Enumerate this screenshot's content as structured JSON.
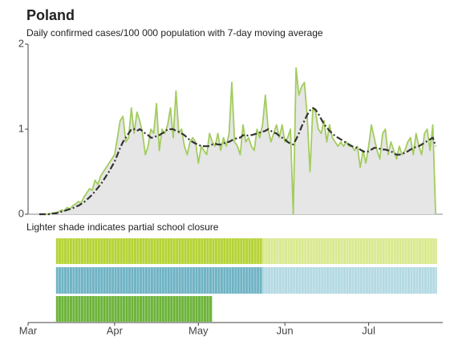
{
  "chart_data": {
    "type": "line",
    "title": "Poland",
    "subtitle": "Daily confirmed cases/100 000 population with 7-day moving average",
    "note": "Lighter shade indicates partial school closure",
    "xlim": [
      0,
      150
    ],
    "xticks": [
      {
        "value": 0,
        "label": "Mar"
      },
      {
        "value": 31,
        "label": "Apr"
      },
      {
        "value": 61,
        "label": "May"
      },
      {
        "value": 92,
        "label": "Jun"
      },
      {
        "value": 122,
        "label": "Jul"
      }
    ],
    "ylim": [
      0,
      2
    ],
    "yticks": [
      0,
      1,
      2
    ],
    "x": [
      4,
      5,
      6,
      7,
      8,
      9,
      10,
      11,
      12,
      13,
      14,
      15,
      16,
      17,
      18,
      19,
      20,
      21,
      22,
      23,
      24,
      25,
      26,
      27,
      28,
      29,
      30,
      31,
      32,
      33,
      34,
      35,
      36,
      37,
      38,
      39,
      40,
      41,
      42,
      43,
      44,
      45,
      46,
      47,
      48,
      49,
      50,
      51,
      52,
      53,
      54,
      55,
      56,
      57,
      58,
      59,
      60,
      61,
      62,
      63,
      64,
      65,
      66,
      67,
      68,
      69,
      70,
      71,
      72,
      73,
      74,
      75,
      76,
      77,
      78,
      79,
      80,
      81,
      82,
      83,
      84,
      85,
      86,
      87,
      88,
      89,
      90,
      91,
      92,
      93,
      94,
      95,
      96,
      97,
      98,
      99,
      100,
      101,
      102,
      103,
      104,
      105,
      106,
      107,
      108,
      109,
      110,
      111,
      112,
      113,
      114,
      115,
      116,
      117,
      118,
      119,
      120,
      121,
      122,
      123,
      124,
      125,
      126,
      127,
      128,
      129,
      130,
      131,
      132,
      133,
      134,
      135,
      136,
      137,
      138,
      139,
      140,
      141,
      142,
      143,
      144,
      145,
      146
    ],
    "series": [
      {
        "color": "#a3cc5f",
        "fill": "#e6e6e6",
        "values": [
          0,
          0,
          0,
          0,
          0.01,
          0.01,
          0.02,
          0.03,
          0.05,
          0.04,
          0.08,
          0.06,
          0.1,
          0.12,
          0.15,
          0.13,
          0.2,
          0.25,
          0.3,
          0.28,
          0.4,
          0.35,
          0.45,
          0.5,
          0.55,
          0.6,
          0.65,
          0.7,
          0.9,
          1.1,
          1.15,
          0.85,
          0.9,
          1.25,
          0.95,
          1.2,
          1.1,
          0.95,
          0.7,
          0.8,
          1.0,
          0.95,
          1.3,
          0.75,
          1.0,
          0.95,
          1.05,
          1.25,
          0.9,
          1.45,
          0.95,
          1.0,
          0.8,
          0.7,
          0.85,
          0.9,
          0.85,
          0.6,
          0.8,
          0.75,
          0.7,
          0.95,
          0.85,
          0.8,
          0.95,
          0.75,
          0.9,
          0.8,
          0.95,
          1.55,
          0.85,
          0.8,
          0.7,
          1.05,
          0.85,
          0.9,
          0.8,
          0.75,
          1.0,
          0.9,
          1.05,
          1.4,
          1.0,
          0.85,
          0.95,
          1.05,
          0.9,
          1.05,
          0.85,
          0.9,
          1.0,
          0.0,
          1.72,
          1.4,
          1.5,
          1.55,
          1.15,
          0.5,
          1.25,
          1.2,
          1.0,
          0.95,
          1.1,
          0.85,
          1.05,
          0.9,
          0.85,
          0.8,
          0.85,
          0.8,
          0.85,
          0.8,
          0.8,
          0.75,
          0.8,
          0.55,
          0.75,
          0.6,
          0.8,
          1.05,
          0.9,
          0.75,
          0.65,
          0.95,
          1.0,
          0.7,
          0.85,
          0.75,
          0.65,
          0.8,
          0.7,
          0.75,
          0.85,
          0.9,
          0.7,
          0.95,
          0.8,
          0.7,
          0.95,
          1.0,
          0.75,
          1.05,
          0.0
        ]
      },
      {
        "color": "#333333",
        "dash": true,
        "values": [
          0,
          0,
          0,
          0,
          0,
          0.01,
          0.01,
          0.02,
          0.03,
          0.04,
          0.05,
          0.06,
          0.07,
          0.09,
          0.1,
          0.12,
          0.14,
          0.17,
          0.2,
          0.23,
          0.27,
          0.31,
          0.35,
          0.4,
          0.45,
          0.5,
          0.56,
          0.62,
          0.7,
          0.78,
          0.85,
          0.9,
          0.95,
          1.0,
          1.0,
          0.98,
          1.0,
          0.98,
          0.95,
          0.93,
          0.9,
          0.9,
          0.92,
          0.93,
          0.95,
          0.97,
          1.0,
          1.0,
          1.0,
          0.98,
          0.97,
          0.95,
          0.93,
          0.9,
          0.87,
          0.85,
          0.83,
          0.82,
          0.8,
          0.8,
          0.8,
          0.8,
          0.82,
          0.83,
          0.82,
          0.82,
          0.83,
          0.85,
          0.85,
          0.87,
          0.88,
          0.9,
          0.9,
          0.93,
          0.92,
          0.93,
          0.93,
          0.94,
          0.95,
          0.96,
          0.97,
          0.98,
          1.0,
          0.98,
          0.96,
          0.95,
          0.92,
          0.9,
          0.88,
          0.85,
          0.83,
          0.82,
          0.88,
          0.95,
          1.03,
          1.1,
          1.17,
          1.22,
          1.25,
          1.23,
          1.18,
          1.12,
          1.06,
          1.02,
          0.98,
          0.95,
          0.92,
          0.9,
          0.88,
          0.86,
          0.84,
          0.82,
          0.8,
          0.79,
          0.78,
          0.76,
          0.74,
          0.73,
          0.74,
          0.76,
          0.78,
          0.78,
          0.77,
          0.76,
          0.76,
          0.75,
          0.74,
          0.72,
          0.7,
          0.7,
          0.71,
          0.72,
          0.74,
          0.76,
          0.78,
          0.79,
          0.8,
          0.82,
          0.84,
          0.86,
          0.88,
          0.9,
          0.8
        ]
      }
    ],
    "bands": [
      {
        "color": "#b5d335",
        "light": "#d9e98f",
        "start": 10,
        "partial_start": 84,
        "end": 146.5
      },
      {
        "color": "#6fb3c4",
        "light": "#b3d9e2",
        "start": 10,
        "partial_start": 84,
        "end": 146.5
      },
      {
        "color": "#6cb33a",
        "start": 10,
        "end": 66
      }
    ]
  }
}
